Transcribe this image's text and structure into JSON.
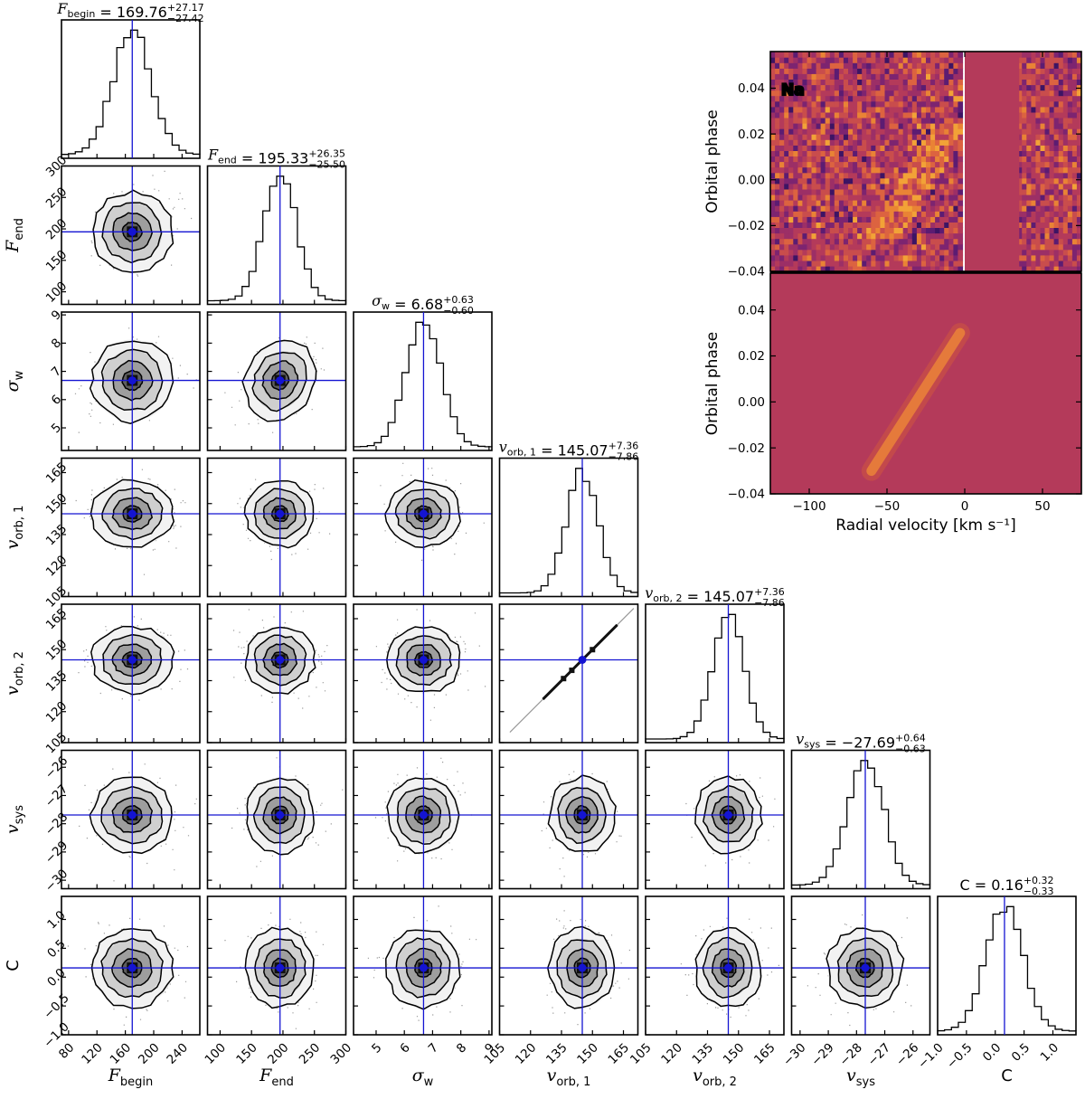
{
  "chart_data": [
    {
      "type": "corner",
      "parameters": [
        {
          "name": "F_begin",
          "label": "F",
          "sub": "begin",
          "median": 169.76,
          "plus": 27.17,
          "minus": 27.42,
          "title_value": "169.76",
          "title_plus": "+27.17",
          "title_minus": "−27.42",
          "range": [
            70,
            265
          ],
          "ticks": [
            80,
            120,
            160,
            200,
            240
          ],
          "ticklabels": [
            "80",
            "120",
            "160",
            "200",
            "240"
          ]
        },
        {
          "name": "F_end",
          "label": "F",
          "sub": "end",
          "median": 195.33,
          "plus": 26.35,
          "minus": 25.5,
          "title_value": "195.33",
          "title_plus": "+26.35",
          "title_minus": "−25.50",
          "range": [
            80,
            300
          ],
          "ticks": [
            100,
            150,
            200,
            250,
            300
          ],
          "ticklabels": [
            "100",
            "150",
            "200",
            "250",
            "300"
          ]
        },
        {
          "name": "sigma_w",
          "label": "σ",
          "sub": "w",
          "median": 6.68,
          "plus": 0.63,
          "minus": 0.6,
          "title_value": "6.68",
          "title_plus": "+0.63",
          "title_minus": "−0.60",
          "range": [
            4.2,
            9.1
          ],
          "ticks": [
            5,
            6,
            7,
            8,
            9
          ],
          "ticklabels": [
            "5",
            "6",
            "7",
            "8",
            "9"
          ]
        },
        {
          "name": "v_orb1",
          "label": "v",
          "sub": "orb, 1",
          "median": 145.07,
          "plus": 7.36,
          "minus": 7.86,
          "title_value": "145.07",
          "title_plus": "+7.36",
          "title_minus": "−7.86",
          "range": [
            105,
            172
          ],
          "ticks": [
            105,
            120,
            135,
            150,
            165
          ],
          "ticklabels": [
            "105",
            "120",
            "135",
            "150",
            "165"
          ]
        },
        {
          "name": "v_orb2",
          "label": "v",
          "sub": "orb, 2",
          "median": 145.07,
          "plus": 7.36,
          "minus": 7.86,
          "title_value": "145.07",
          "title_plus": "+7.36",
          "title_minus": "−7.86",
          "range": [
            105,
            172
          ],
          "ticks": [
            105,
            120,
            135,
            150,
            165
          ],
          "ticklabels": [
            "105",
            "120",
            "135",
            "150",
            "165"
          ]
        },
        {
          "name": "v_sys",
          "label": "v",
          "sub": "sys",
          "median": -27.69,
          "plus": 0.64,
          "minus": 0.63,
          "title_value": "−27.69",
          "title_plus": "+0.64",
          "title_minus": "−0.63",
          "range": [
            -30.3,
            -25.4
          ],
          "ticks": [
            -30,
            -29,
            -28,
            -27,
            -26
          ],
          "ticklabels": [
            "−30",
            "−29",
            "−28",
            "−27",
            "−26"
          ]
        },
        {
          "name": "C",
          "label": "C",
          "sub": "",
          "median": 0.16,
          "plus": 0.32,
          "minus": 0.33,
          "title_value": "0.16",
          "title_plus": "+0.32",
          "title_minus": "−0.33",
          "range": [
            -1.0,
            1.4
          ],
          "ticks": [
            -1.0,
            -0.5,
            0.0,
            0.5,
            1.0
          ],
          "ticklabels": [
            "−1.0",
            "−0.5",
            "0.0",
            "0.5",
            "1.0"
          ]
        }
      ]
    },
    {
      "type": "heatmap",
      "element_label": "Na",
      "ylabel": "Orbital phase",
      "ylim": [
        -0.04,
        0.056
      ],
      "yticks": [
        -0.04,
        -0.02,
        0.0,
        0.02,
        0.04
      ],
      "yticklabels": [
        "−0.04",
        "−0.02",
        "0.00",
        "0.02",
        "0.04"
      ],
      "masked_rv_range": [
        0,
        35
      ]
    },
    {
      "type": "heatmap",
      "xlabel": "Radial velocity [km s⁻¹]",
      "ylabel": "Orbital phase",
      "xlim": [
        -125,
        75
      ],
      "ylim": [
        -0.04,
        0.056
      ],
      "xticks": [
        -100,
        -50,
        0,
        50
      ],
      "xticklabels": [
        "−100",
        "−50",
        "0",
        "50"
      ],
      "yticks": [
        -0.04,
        -0.02,
        0.0,
        0.02,
        0.04
      ],
      "yticklabels": [
        "−0.04",
        "−0.02",
        "0.00",
        "0.02",
        "0.04"
      ],
      "model_track": {
        "rv_start": -60,
        "phase_start": -0.03,
        "rv_end": -3,
        "phase_end": 0.03
      }
    }
  ],
  "colors": {
    "truth_line": "#1414d2",
    "heatmap_background": "#b43a5a",
    "heatmap_hot": "#f2a237",
    "heatmap_cold": "#4a1a78"
  }
}
